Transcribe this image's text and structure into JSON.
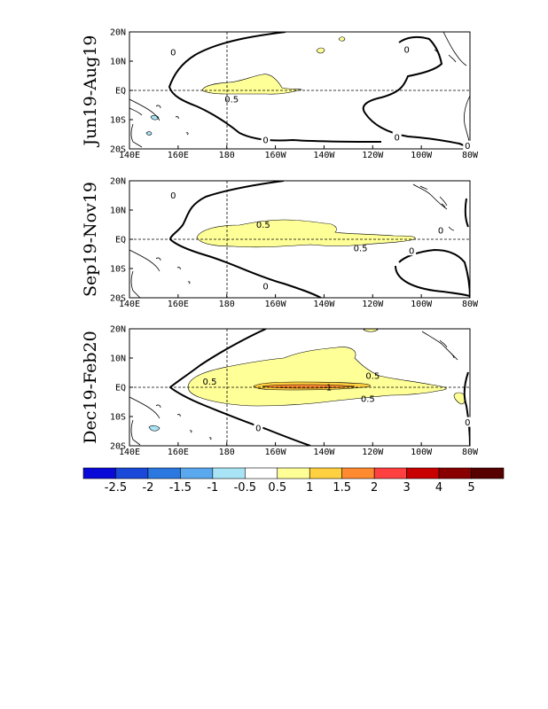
{
  "chart_data": {
    "type": "contour",
    "x_ticks": [
      "140E",
      "160E",
      "180",
      "160W",
      "140W",
      "120W",
      "100W",
      "80W"
    ],
    "y_ticks": [
      "20S",
      "10S",
      "EQ",
      "10N",
      "20N"
    ],
    "panels": [
      {
        "title": "Jun19-Aug19",
        "contour_labels": [
          {
            "text": "0.5",
            "lon": 182,
            "lat": -3
          },
          {
            "text": "0",
            "lon": 158,
            "lat": 13
          },
          {
            "text": "0",
            "lon": 254,
            "lat": 14
          },
          {
            "text": "0",
            "lon": 196,
            "lat": -17
          },
          {
            "text": "0",
            "lon": 250,
            "lat": -16
          },
          {
            "text": "0",
            "lon": 279,
            "lat": -19
          }
        ]
      },
      {
        "title": "Sep19-Nov19",
        "contour_labels": [
          {
            "text": "0.5",
            "lon": 195,
            "lat": 5
          },
          {
            "text": "0.5",
            "lon": 235,
            "lat": -3
          },
          {
            "text": "0",
            "lon": 158,
            "lat": 15
          },
          {
            "text": "0",
            "lon": 196,
            "lat": -16
          },
          {
            "text": "0",
            "lon": 268,
            "lat": 3
          },
          {
            "text": "0",
            "lon": 256,
            "lat": -4
          }
        ]
      },
      {
        "title": "Dec19-Feb20",
        "contour_labels": [
          {
            "text": "0.5",
            "lon": 173,
            "lat": 2
          },
          {
            "text": "1",
            "lon": 222,
            "lat": 0
          },
          {
            "text": "0.5",
            "lon": 240,
            "lat": 4
          },
          {
            "text": "0.5",
            "lon": 238,
            "lat": -4
          },
          {
            "text": "0",
            "lon": 193,
            "lat": -14
          },
          {
            "text": "0",
            "lon": 279,
            "lat": -12
          }
        ]
      }
    ],
    "colorbar": {
      "colors": [
        "#0a0ad8",
        "#1a48d8",
        "#2a78e0",
        "#5aa8ee",
        "#a8e4f6",
        "#ffffff",
        "#ffff98",
        "#ffd040",
        "#ff8a30",
        "#ff4040",
        "#c80000",
        "#880000",
        "#560000"
      ],
      "labels": [
        "-2.5",
        "-2",
        "-1.5",
        "-1",
        "-0.5",
        "0.5",
        "1",
        "1.5",
        "2",
        "3",
        "4",
        "5"
      ]
    }
  }
}
